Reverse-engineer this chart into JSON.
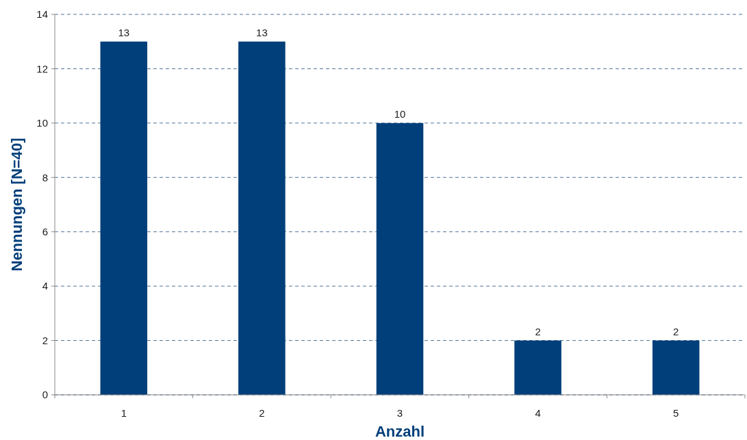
{
  "chart_data": {
    "type": "bar",
    "xlabel": "Anzahl",
    "ylabel": "Nennungen [N=40]",
    "categories": [
      "1",
      "2",
      "3",
      "4",
      "5"
    ],
    "values": [
      13,
      13,
      10,
      2,
      2
    ],
    "color": "#003f7a",
    "ylim": [
      0,
      14
    ],
    "yticks": [
      0,
      2,
      4,
      6,
      8,
      10,
      12,
      14
    ],
    "grid": "y",
    "data_labels": true
  }
}
